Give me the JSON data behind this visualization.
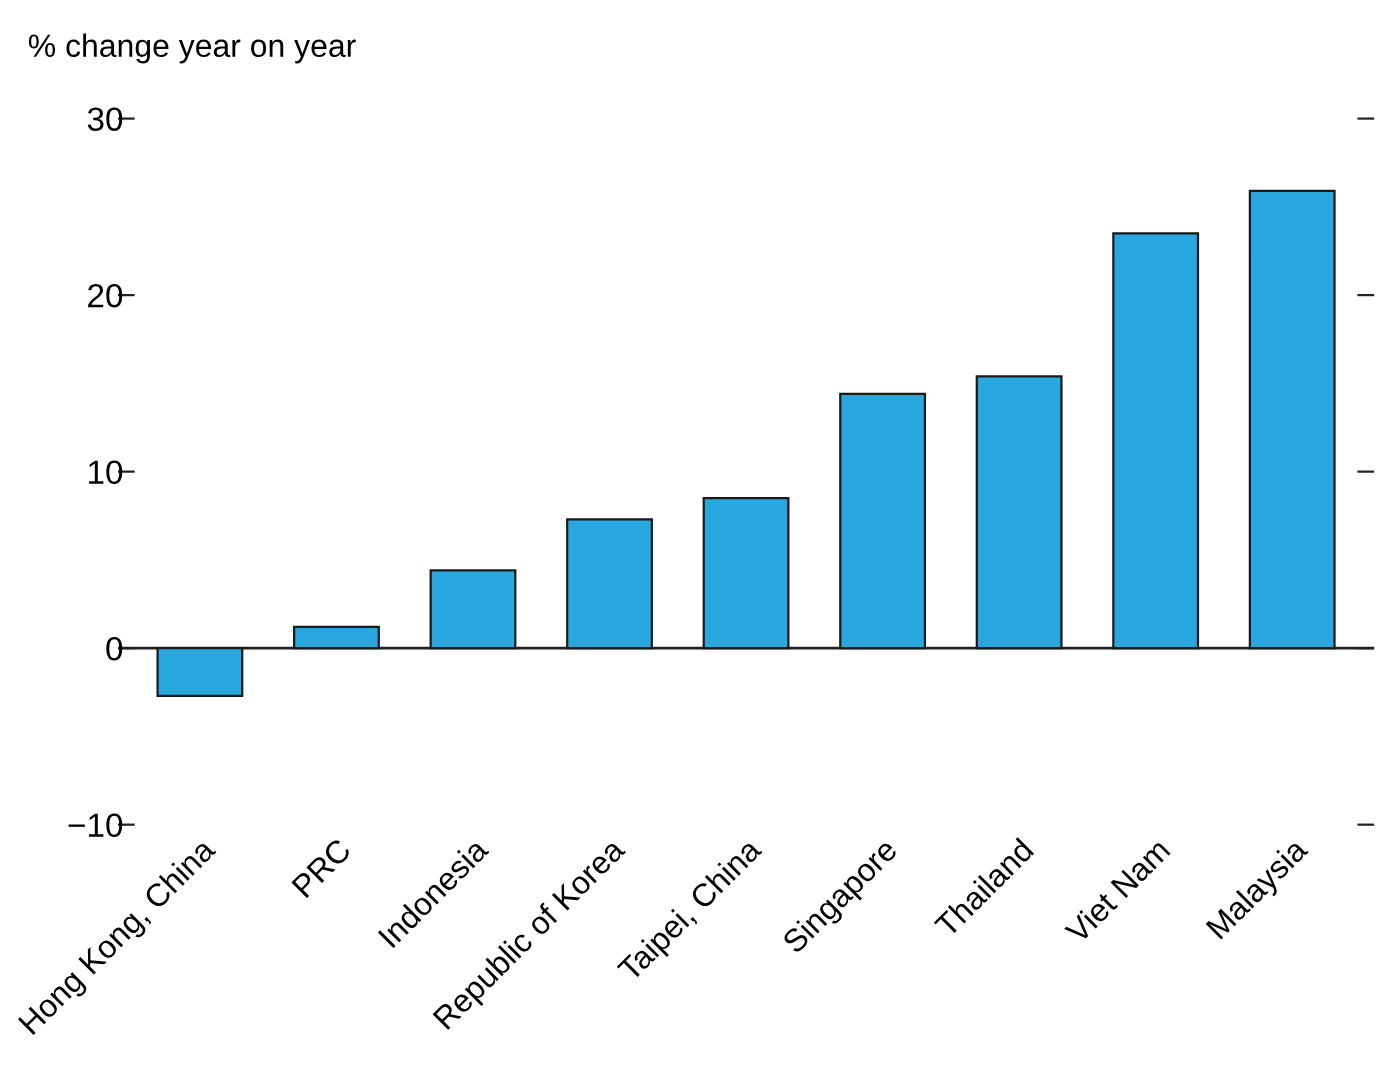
{
  "chart_data": {
    "type": "bar",
    "ylabel": "% change year on year",
    "categories": [
      "Hong Kong, China",
      "PRC",
      "Indonesia",
      "Republic of Korea",
      "Taipei, China",
      "Singapore",
      "Thailand",
      "Viet Nam",
      "Malaysia"
    ],
    "values": [
      -2.7,
      1.2,
      4.4,
      7.3,
      8.5,
      14.4,
      15.4,
      23.5,
      25.9
    ],
    "color": "#29a8e0",
    "ylim": [
      -10,
      30
    ],
    "yticks": [
      -10,
      0,
      10,
      20,
      30
    ],
    "ref_lines": [
      {
        "axis": "y",
        "value": 0,
        "label": null
      }
    ]
  }
}
